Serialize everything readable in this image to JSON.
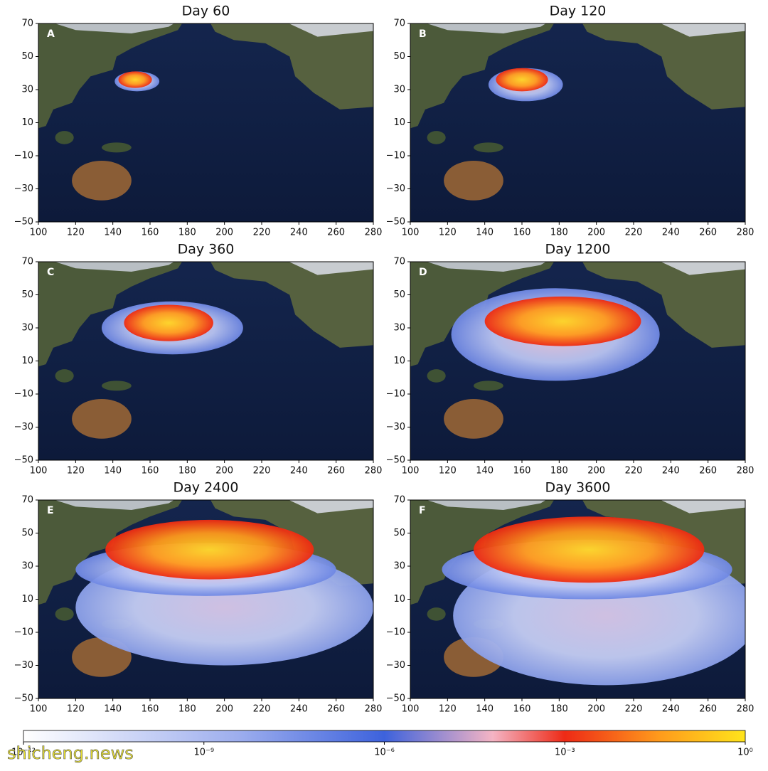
{
  "figure": {
    "panels": [
      {
        "title": "Day 60",
        "letter": "A"
      },
      {
        "title": "Day 120",
        "letter": "B"
      },
      {
        "title": "Day 360",
        "letter": "C"
      },
      {
        "title": "Day 1200",
        "letter": "D"
      },
      {
        "title": "Day 2400",
        "letter": "E"
      },
      {
        "title": "Day 3600",
        "letter": "F"
      }
    ],
    "xlim": [
      100,
      280
    ],
    "ylim": [
      -50,
      70
    ],
    "xticks": [
      100,
      120,
      140,
      160,
      180,
      200,
      220,
      240,
      260,
      280
    ],
    "yticks": [
      {
        "value": -50,
        "label": "−50"
      },
      {
        "value": -30,
        "label": "−30"
      },
      {
        "value": -10,
        "label": "−10"
      },
      10,
      30,
      50,
      70
    ]
  },
  "colorbar": {
    "scale": "log",
    "lim": [
      1e-12,
      1
    ],
    "ticks": [
      {
        "value": 1e-12,
        "label": "10⁻¹²"
      },
      {
        "value": 1e-09,
        "label": "10⁻⁹"
      },
      {
        "value": 1e-06,
        "label": "10⁻⁶"
      },
      {
        "value": 0.001,
        "label": "10⁻³"
      },
      {
        "value": 1,
        "label": "10⁰"
      }
    ]
  },
  "watermark": "shicheng.news"
}
